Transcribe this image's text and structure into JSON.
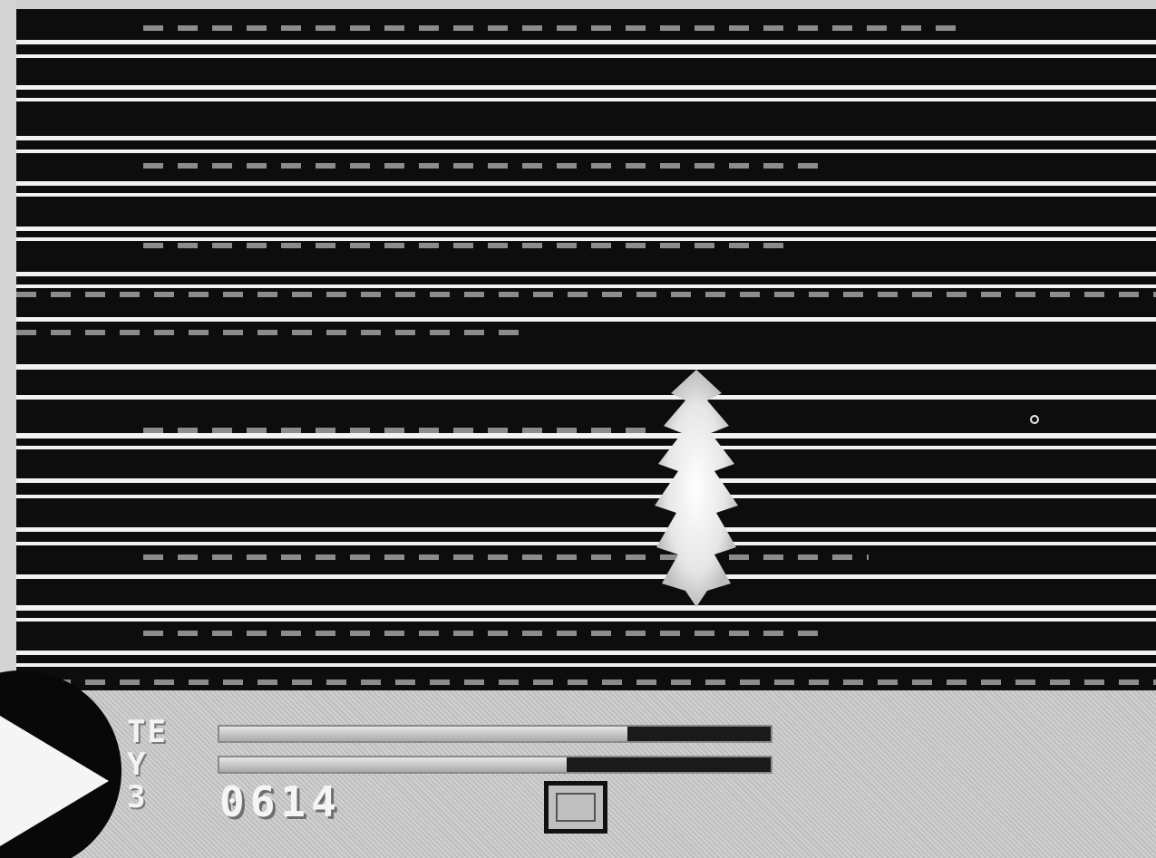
{
  "hud": {
    "labels": [
      "TE",
      "Y",
      "3"
    ],
    "score": "0614",
    "bar_1_level": 0.74,
    "bar_2_level": 0.63
  },
  "colors": {
    "playfield": "#0d0d0d",
    "stripe": "#f2f2f2",
    "hud": "#cfcfcf"
  },
  "icons": {
    "pointer": "play-arrow-icon",
    "item": "item-box-icon",
    "ship": "player-ship-icon"
  }
}
